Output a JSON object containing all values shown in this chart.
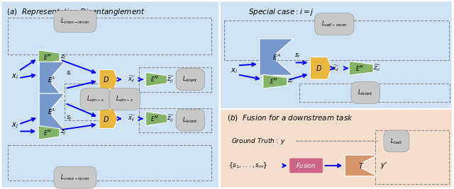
{
  "bg_color_a": "#cfe2f3",
  "bg_color_b": "#f5dece",
  "label_bg": "#c8c8c8",
  "arrow_color": "#2255cc",
  "dashed_color": "#888888",
  "green_color": "#82b366",
  "blue_color": "#6677bb",
  "blue_light": "#7799cc",
  "yellow_color": "#e8b840",
  "pink_color": "#cc6688",
  "orange_color": "#d4956a",
  "white": "#ffffff"
}
